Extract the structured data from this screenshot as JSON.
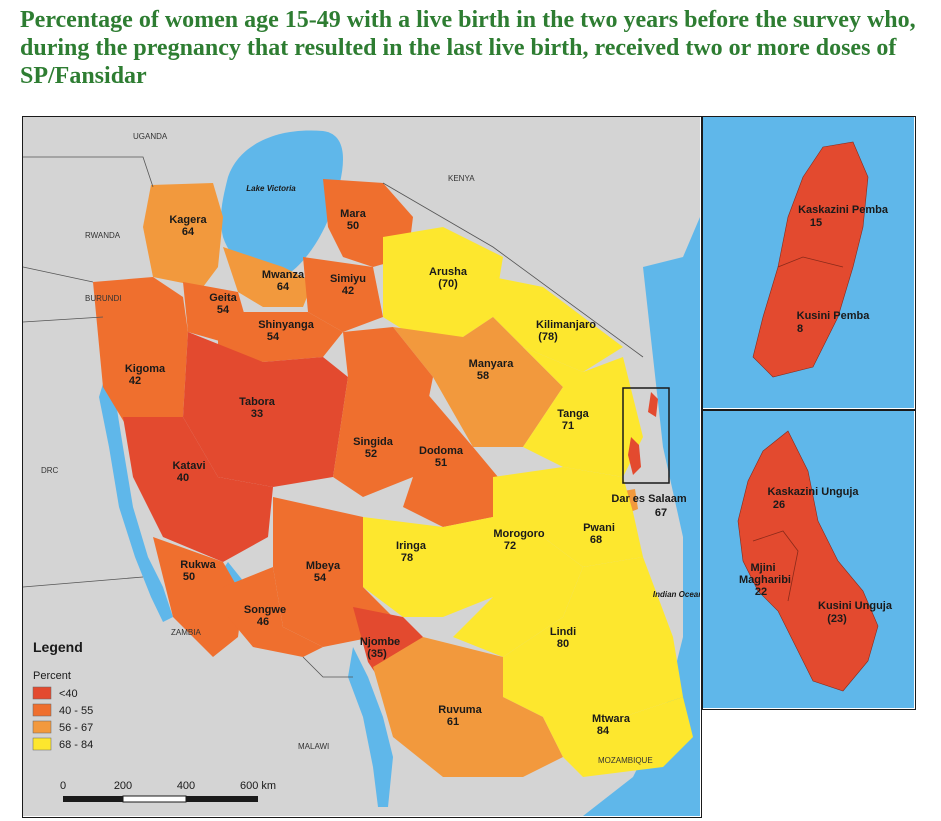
{
  "title": "Percentage of women age 15-49 with a live birth in the two years before the survey who, during the pregnancy that resulted in the last live birth, received two or more doses of SP/Fansidar",
  "colors": {
    "lt40": "#e34a2f",
    "r40_55": "#ef6f2e",
    "r56_67": "#f2993d",
    "r68_84": "#fde72e",
    "water": "#5fb7ea",
    "land": "#d4d4d4"
  },
  "countries": [
    "UGANDA",
    "KENYA",
    "RWANDA",
    "BURUNDI",
    "DRC",
    "ZAMBIA",
    "MALAWI",
    "MOZAMBIQUE"
  ],
  "water_labels": {
    "lake_victoria": "Lake Victoria",
    "indian_ocean": "Indian Ocean"
  },
  "regions": [
    {
      "name": "Kagera",
      "value": "64"
    },
    {
      "name": "Mara",
      "value": "50"
    },
    {
      "name": "Mwanza",
      "value": "64"
    },
    {
      "name": "Simiyu",
      "value": "42"
    },
    {
      "name": "Geita",
      "value": "54"
    },
    {
      "name": "Shinyanga",
      "value": "54"
    },
    {
      "name": "Arusha",
      "value": "(70)"
    },
    {
      "name": "Kilimanjaro",
      "value": "(78)"
    },
    {
      "name": "Manyara",
      "value": "58"
    },
    {
      "name": "Tanga",
      "value": "71"
    },
    {
      "name": "Kigoma",
      "value": "42"
    },
    {
      "name": "Tabora",
      "value": "33"
    },
    {
      "name": "Singida",
      "value": "52"
    },
    {
      "name": "Dodoma",
      "value": "51"
    },
    {
      "name": "Katavi",
      "value": "40"
    },
    {
      "name": "Dar es Salaam",
      "value": "67"
    },
    {
      "name": "Pwani",
      "value": "68"
    },
    {
      "name": "Morogoro",
      "value": "72"
    },
    {
      "name": "Iringa",
      "value": "78"
    },
    {
      "name": "Rukwa",
      "value": "50"
    },
    {
      "name": "Mbeya",
      "value": "54"
    },
    {
      "name": "Songwe",
      "value": "46"
    },
    {
      "name": "Njombe",
      "value": "(35)"
    },
    {
      "name": "Lindi",
      "value": "80"
    },
    {
      "name": "Ruvuma",
      "value": "61"
    },
    {
      "name": "Mtwara",
      "value": "84"
    },
    {
      "name": "Kaskazini Pemba",
      "value": "15"
    },
    {
      "name": "Kusini Pemba",
      "value": "8"
    },
    {
      "name": "Kaskazini Unguja",
      "value": "26"
    },
    {
      "name": "Mjini Magharibi",
      "value": "22"
    },
    {
      "name": "Kusini Unguja",
      "value": "(23)"
    }
  ],
  "legend": {
    "title": "Legend",
    "subtitle": "Percent",
    "items": [
      {
        "label": "<40",
        "color": "#e34a2f"
      },
      {
        "label": "40 - 55",
        "color": "#ef6f2e"
      },
      {
        "label": "56 - 67",
        "color": "#f2993d"
      },
      {
        "label": "68 - 84",
        "color": "#fde72e"
      }
    ]
  },
  "scale_bar": {
    "ticks": [
      "0",
      "200",
      "400",
      "600 km"
    ]
  }
}
